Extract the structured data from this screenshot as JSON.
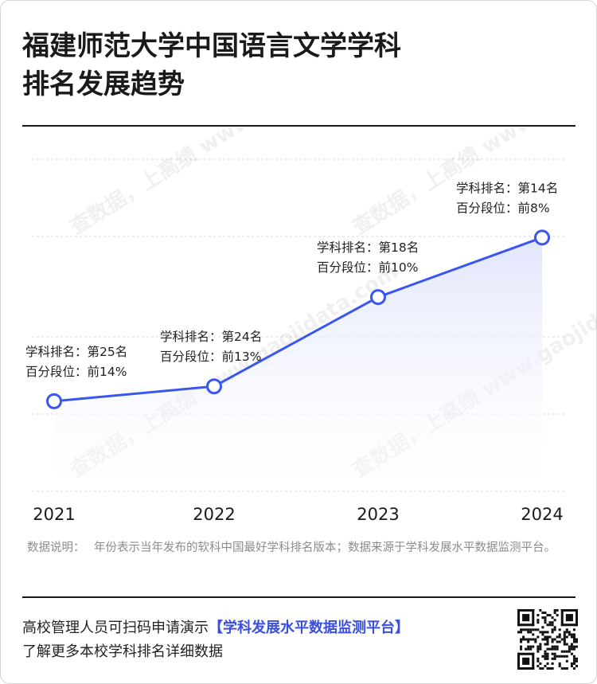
{
  "title_line1": "福建师范大学中国语言文学学科",
  "title_line2": "排名发展趋势",
  "watermark": "查数据，上高绩 www.gaojidata.com",
  "chart_data": {
    "type": "line",
    "x": [
      "2021",
      "2022",
      "2023",
      "2024"
    ],
    "series": [
      {
        "values": [
          25,
          24,
          18,
          14
        ]
      }
    ],
    "ranking_labels": [
      "学科排名：第25名",
      "学科排名：第24名",
      "学科排名：第18名",
      "学科排名：第14名"
    ],
    "percent_labels": [
      "百分段位：前14%",
      "百分段位：前13%",
      "百分段位：前10%",
      "百分段位：前8%"
    ],
    "y_reversed": true,
    "ylim": [
      31,
      7
    ],
    "grid": true,
    "colors": {
      "line": "#3a56f0",
      "fill": "#e9ecfc",
      "grid": "#d9d9d9"
    }
  },
  "note": {
    "label": "数据说明：",
    "text": "年份表示当年发布的软科中国最好学科排名版本；数据来源于学科发展水平数据监测平台。"
  },
  "footer": {
    "line1_prefix": "高校管理人员可扫码申请演示",
    "line1_highlight": "【学科发展水平数据监测平台】",
    "line2": "了解更多本校学科排名详细数据"
  },
  "qr_icon": "qr-code-icon"
}
